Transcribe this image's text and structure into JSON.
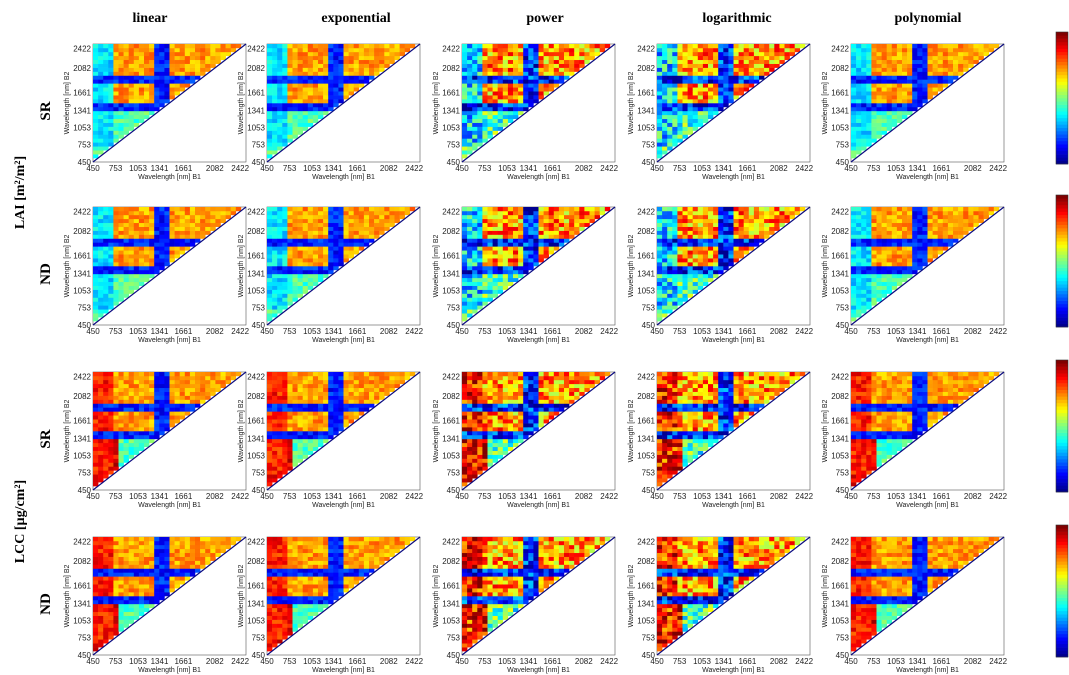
{
  "chart_data": {
    "type": "heatmap",
    "description_layout": "4 rows x 5 columns of lower-triangular band-combination maps",
    "columns": [
      "linear",
      "exponential",
      "power",
      "logarithmic",
      "polynomial"
    ],
    "rows": [
      {
        "variable": "LAI",
        "index": "SR"
      },
      {
        "variable": "LAI",
        "index": "ND"
      },
      {
        "variable": "LCC",
        "index": "SR"
      },
      {
        "variable": "LCC",
        "index": "ND"
      }
    ],
    "group_labels": {
      "LAI": "LAI [m²/m²]",
      "LCC": "LCC [µg/cm²]"
    },
    "xlabel": "Wavelength [nm] B1",
    "ylabel": "Wavelength [nm] B2",
    "ticks": [
      "450",
      "753",
      "1053",
      "1341",
      "1661",
      "2082",
      "2422"
    ],
    "tick_values": [
      450,
      753,
      1053,
      1341,
      1661,
      2082,
      2422
    ],
    "axis_range": [
      450,
      2500
    ],
    "absorption_gaps_nm": [
      1341,
      1900
    ],
    "colormap": "jet",
    "colormap_colors": [
      "#00008f",
      "#0000ff",
      "#0080ff",
      "#00ffff",
      "#80ff80",
      "#ffff00",
      "#ff8000",
      "#ff0000",
      "#800000"
    ],
    "colorbar_range": [
      0,
      1
    ]
  }
}
